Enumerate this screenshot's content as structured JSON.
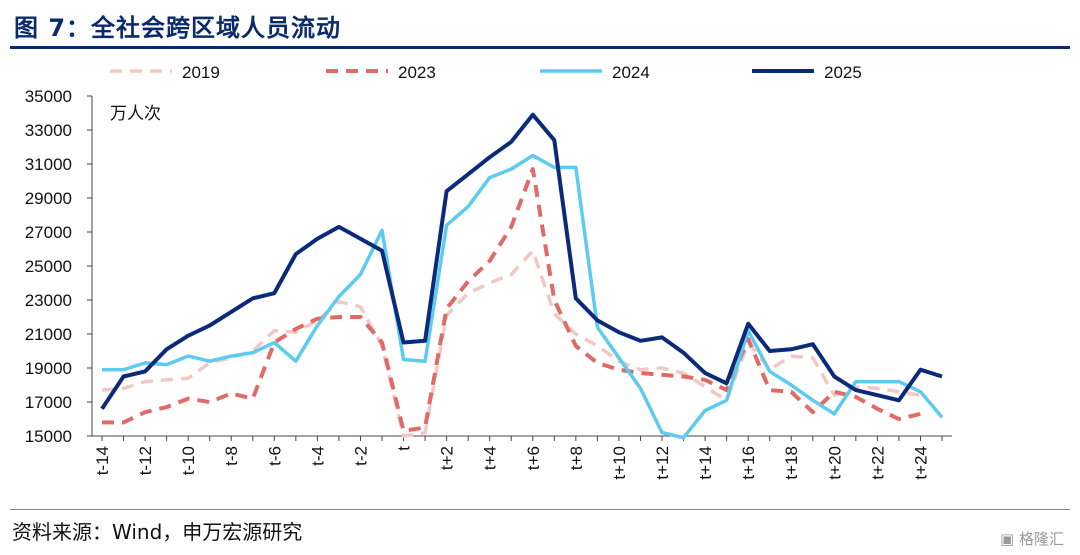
{
  "figure": {
    "title": "图 7：全社会跨区域人员流动",
    "source": "资料来源：Wind，申万宏源研究",
    "watermark": "格隆汇"
  },
  "colors": {
    "title": "#0b2a6b",
    "s2019": "#f2c8c4",
    "s2023": "#e06a66",
    "s2024": "#5ccbf0",
    "s2025": "#0b2a7a"
  },
  "chart_data": {
    "type": "line",
    "unit_label": "万人次",
    "ylim": [
      15000,
      35000
    ],
    "yticks": [
      15000,
      17000,
      19000,
      21000,
      23000,
      25000,
      27000,
      29000,
      31000,
      33000,
      35000
    ],
    "x": [
      "t-14",
      "t-13",
      "t-12",
      "t-11",
      "t-10",
      "t-9",
      "t-8",
      "t-7",
      "t-6",
      "t-5",
      "t-4",
      "t-3",
      "t-2",
      "t-1",
      "t",
      "t+1",
      "t+2",
      "t+3",
      "t+4",
      "t+5",
      "t+6",
      "t+7",
      "t+8",
      "t+9",
      "t+10",
      "t+11",
      "t+12",
      "t+13",
      "t+14",
      "t+15",
      "t+16",
      "t+17",
      "t+18",
      "t+19",
      "t+20",
      "t+21",
      "t+22",
      "t+23",
      "t+24",
      "t+25"
    ],
    "x_tick_labels": [
      "t-14",
      "t-12",
      "t-10",
      "t-8",
      "t-6",
      "t-4",
      "t-2",
      "t",
      "t+2",
      "t+4",
      "t+6",
      "t+8",
      "t+10",
      "t+12",
      "t+14",
      "t+16",
      "t+18",
      "t+20",
      "t+22",
      "t+24"
    ],
    "legend_position": "top",
    "grid": false,
    "series": [
      {
        "name": "2019",
        "style": "dashed-light",
        "color_key": "s2019",
        "values": [
          17700,
          17800,
          18200,
          18300,
          18400,
          19300,
          19600,
          20000,
          21200,
          21100,
          21800,
          22900,
          22600,
          20300,
          15000,
          15200,
          22100,
          23400,
          24000,
          24500,
          25900,
          22200,
          21000,
          20300,
          19400,
          18900,
          19000,
          18700,
          17900,
          17100,
          20500,
          18900,
          19700,
          19600,
          17400,
          17900,
          17800,
          17600,
          17400,
          null
        ]
      },
      {
        "name": "2023",
        "style": "dashed",
        "color_key": "s2023",
        "values": [
          15800,
          15800,
          16400,
          16700,
          17200,
          17000,
          17500,
          17200,
          20500,
          21300,
          21900,
          22000,
          22000,
          20500,
          15300,
          15500,
          22500,
          24100,
          25300,
          27300,
          30700,
          23000,
          20300,
          19300,
          18900,
          18700,
          18600,
          18500,
          18300,
          17700,
          20700,
          17700,
          17600,
          16400,
          17600,
          17300,
          16600,
          16000,
          16300,
          null
        ]
      },
      {
        "name": "2024",
        "style": "solid",
        "color_key": "s2024",
        "values": [
          18900,
          18900,
          19300,
          19200,
          19700,
          19400,
          19700,
          19900,
          20500,
          19400,
          21500,
          23200,
          24500,
          27100,
          19500,
          19400,
          27400,
          28500,
          30200,
          30700,
          31500,
          30800,
          30800,
          21400,
          19600,
          17800,
          15200,
          14900,
          16500,
          17100,
          21200,
          18800,
          18000,
          17100,
          16300,
          18200,
          18200,
          18200,
          17600,
          16100
        ]
      },
      {
        "name": "2025",
        "style": "solid-thick",
        "color_key": "s2025",
        "values": [
          16600,
          18500,
          18800,
          20100,
          20900,
          21500,
          22300,
          23100,
          23400,
          25700,
          26600,
          27300,
          26600,
          25900,
          20500,
          20600,
          29400,
          30400,
          31400,
          32300,
          33900,
          32400,
          23100,
          21800,
          21100,
          20600,
          20800,
          19900,
          18700,
          18100,
          21600,
          20000,
          20100,
          20400,
          18500,
          17700,
          17400,
          17100,
          18900,
          18500
        ]
      }
    ]
  }
}
